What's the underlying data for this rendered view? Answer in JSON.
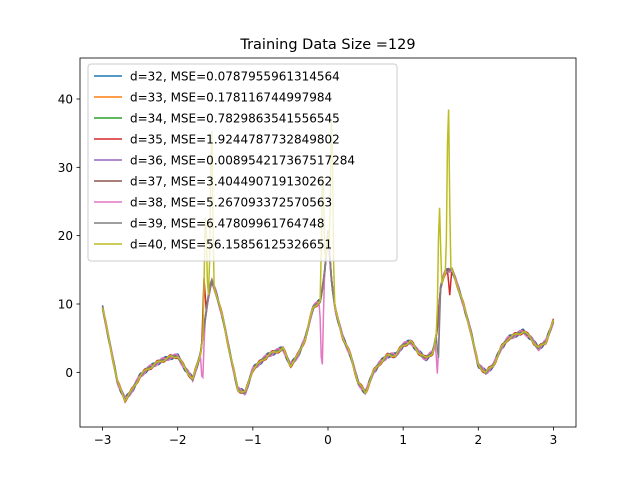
{
  "chart_data": {
    "type": "line",
    "title": "Training Data Size =129",
    "xlabel": "",
    "ylabel": "",
    "xlim": [
      -3.3,
      3.3
    ],
    "ylim": [
      -8,
      46
    ],
    "xticks": [
      -3,
      -2,
      -1,
      0,
      1,
      2,
      3
    ],
    "yticks": [
      0,
      10,
      20,
      30,
      40
    ],
    "xtick_labels": [
      "−3",
      "−2",
      "−1",
      "0",
      "1",
      "2",
      "3"
    ],
    "ytick_labels": [
      "0",
      "10",
      "20",
      "30",
      "40"
    ],
    "grid": false,
    "legend_position": "top-left",
    "base_curve": {
      "x": [
        -3.0,
        -2.9,
        -2.8,
        -2.7,
        -2.6,
        -2.5,
        -2.4,
        -2.3,
        -2.2,
        -2.1,
        -2.0,
        -1.9,
        -1.8,
        -1.7,
        -1.65,
        -1.6,
        -1.55,
        -1.5,
        -1.4,
        -1.3,
        -1.2,
        -1.1,
        -1.0,
        -0.9,
        -0.8,
        -0.7,
        -0.6,
        -0.5,
        -0.4,
        -0.3,
        -0.2,
        -0.1,
        -0.05,
        0.0,
        0.05,
        0.1,
        0.2,
        0.3,
        0.4,
        0.5,
        0.6,
        0.7,
        0.8,
        0.9,
        1.0,
        1.1,
        1.2,
        1.3,
        1.4,
        1.45,
        1.5,
        1.55,
        1.6,
        1.65,
        1.7,
        1.8,
        1.9,
        2.0,
        2.1,
        2.2,
        2.3,
        2.4,
        2.5,
        2.6,
        2.7,
        2.8,
        2.9,
        3.0
      ],
      "y": [
        9.5,
        4.0,
        -1.5,
        -4.0,
        -2.5,
        -0.5,
        0.5,
        1.2,
        1.8,
        2.2,
        2.4,
        0.5,
        -1.0,
        2.5,
        6.5,
        10.5,
        13.5,
        12.0,
        8.0,
        2.5,
        -2.5,
        -3.0,
        0.5,
        1.5,
        2.5,
        3.0,
        3.5,
        1.0,
        2.5,
        5.0,
        9.5,
        10.5,
        14.0,
        20.5,
        13.0,
        9.0,
        5.0,
        2.5,
        -1.5,
        -3.0,
        0.0,
        1.5,
        2.5,
        2.5,
        4.0,
        4.5,
        3.0,
        2.0,
        3.0,
        6.0,
        12.5,
        14.5,
        15.0,
        15.0,
        13.5,
        10.0,
        6.0,
        1.0,
        0.0,
        1.0,
        3.5,
        5.0,
        5.5,
        6.0,
        5.0,
        3.5,
        4.5,
        7.5
      ]
    },
    "series": [
      {
        "name": "d=32, MSE=0.0787955961314564",
        "color": "#1f77b4"
      },
      {
        "name": "d=33, MSE=0.178116744997984",
        "color": "#ff7f0e"
      },
      {
        "name": "d=34, MSE=0.7829863541556545",
        "color": "#2ca02c"
      },
      {
        "name": "d=35, MSE=1.9244787732849802",
        "color": "#d62728"
      },
      {
        "name": "d=36, MSE=0.008954217367517284",
        "color": "#9467bd"
      },
      {
        "name": "d=37, MSE=3.404490719130262",
        "color": "#8c564b"
      },
      {
        "name": "d=38, MSE=5.267093372570563",
        "color": "#e377c2"
      },
      {
        "name": "d=39, MSE=6.47809961764748",
        "color": "#7f7f7f"
      },
      {
        "name": "d=40, MSE=56.15856125326651",
        "color": "#bcbd22"
      }
    ],
    "spikes": [
      {
        "series": 6,
        "x": -1.67,
        "y": -2.5
      },
      {
        "series": 6,
        "x": 1.46,
        "y": -0.5
      },
      {
        "series": 6,
        "x": -0.08,
        "y": -1.0
      },
      {
        "series": 3,
        "x": -1.65,
        "y": 14.0
      },
      {
        "series": 3,
        "x": 1.62,
        "y": 11.0
      },
      {
        "series": 8,
        "x": -1.63,
        "y": 26.0
      },
      {
        "series": 8,
        "x": -1.55,
        "y": 40.0
      },
      {
        "series": 8,
        "x": 1.48,
        "y": 26.0
      },
      {
        "series": 8,
        "x": 1.6,
        "y": 43.0
      },
      {
        "series": 8,
        "x": -0.07,
        "y": 32.0
      },
      {
        "series": 8,
        "x": 0.05,
        "y": 41.0
      },
      {
        "series": 7,
        "x": 1.47,
        "y": 2.0
      }
    ]
  }
}
